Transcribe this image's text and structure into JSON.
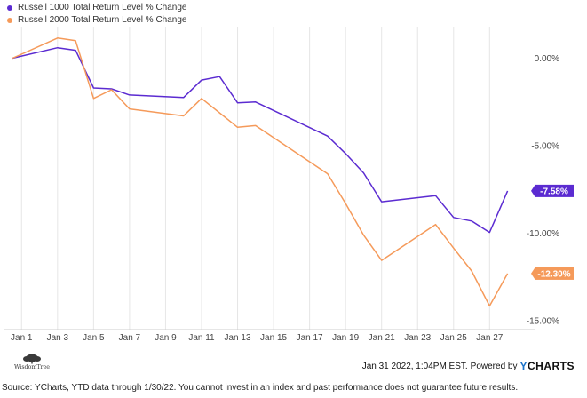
{
  "chart_data": {
    "type": "line",
    "ylim": [
      -15.5,
      1.8
    ],
    "xlim": [
      0,
      29.5
    ],
    "y_ticks": [
      0,
      -5,
      -10,
      -15
    ],
    "y_tick_labels": [
      "0.00%",
      "-5.00%",
      "-10.00%",
      "-15.00%"
    ],
    "x_tick_values": [
      1,
      3,
      5,
      7,
      9,
      11,
      13,
      15,
      17,
      19,
      21,
      23,
      25,
      27
    ],
    "x_tick_labels": [
      "Jan 1",
      "Jan 3",
      "Jan 5",
      "Jan 7",
      "Jan 9",
      "Jan 11",
      "Jan 13",
      "Jan 15",
      "Jan 17",
      "Jan 19",
      "Jan 21",
      "Jan 23",
      "Jan 25",
      "Jan 27"
    ],
    "grid": "vertical",
    "legend_position": "top-left",
    "series": [
      {
        "name": "Russell 1000 Total Return Level % Change",
        "color": "#5b2bd1",
        "end_label": "-7.58%",
        "points": [
          [
            0.5,
            0
          ],
          [
            3,
            0.6
          ],
          [
            4,
            0.45
          ],
          [
            5,
            -1.7
          ],
          [
            6,
            -1.75
          ],
          [
            7,
            -2.1
          ],
          [
            10,
            -2.25
          ],
          [
            11,
            -1.25
          ],
          [
            12,
            -1.05
          ],
          [
            13,
            -2.55
          ],
          [
            14,
            -2.5
          ],
          [
            18,
            -4.45
          ],
          [
            19,
            -5.45
          ],
          [
            20,
            -6.55
          ],
          [
            21,
            -8.2
          ],
          [
            24,
            -7.85
          ],
          [
            25,
            -9.1
          ],
          [
            26,
            -9.3
          ],
          [
            27,
            -9.95
          ],
          [
            28,
            -7.58
          ]
        ]
      },
      {
        "name": "Russell 2000 Total Return Level % Change",
        "color": "#f59a5a",
        "end_label": "-12.30%",
        "points": [
          [
            0.5,
            0
          ],
          [
            3,
            1.15
          ],
          [
            4,
            1.0
          ],
          [
            5,
            -2.3
          ],
          [
            6,
            -1.8
          ],
          [
            7,
            -2.9
          ],
          [
            10,
            -3.3
          ],
          [
            11,
            -2.3
          ],
          [
            13,
            -3.95
          ],
          [
            14,
            -3.85
          ],
          [
            18,
            -6.6
          ],
          [
            19,
            -8.3
          ],
          [
            20,
            -10.1
          ],
          [
            21,
            -11.55
          ],
          [
            24,
            -9.5
          ],
          [
            25,
            -10.85
          ],
          [
            26,
            -12.15
          ],
          [
            27,
            -14.15
          ],
          [
            28,
            -12.3
          ]
        ]
      }
    ]
  },
  "footer": {
    "logo_text": "WisdomTree",
    "timestamp": "Jan 31 2022, 1:04PM EST.",
    "powered_by": "Powered by",
    "ycharts_y": "Y",
    "ycharts_rest": "CHARTS",
    "source": "Source: YCharts, YTD data through 1/30/22. You cannot invest in an index and past performance does not guarantee future results."
  }
}
